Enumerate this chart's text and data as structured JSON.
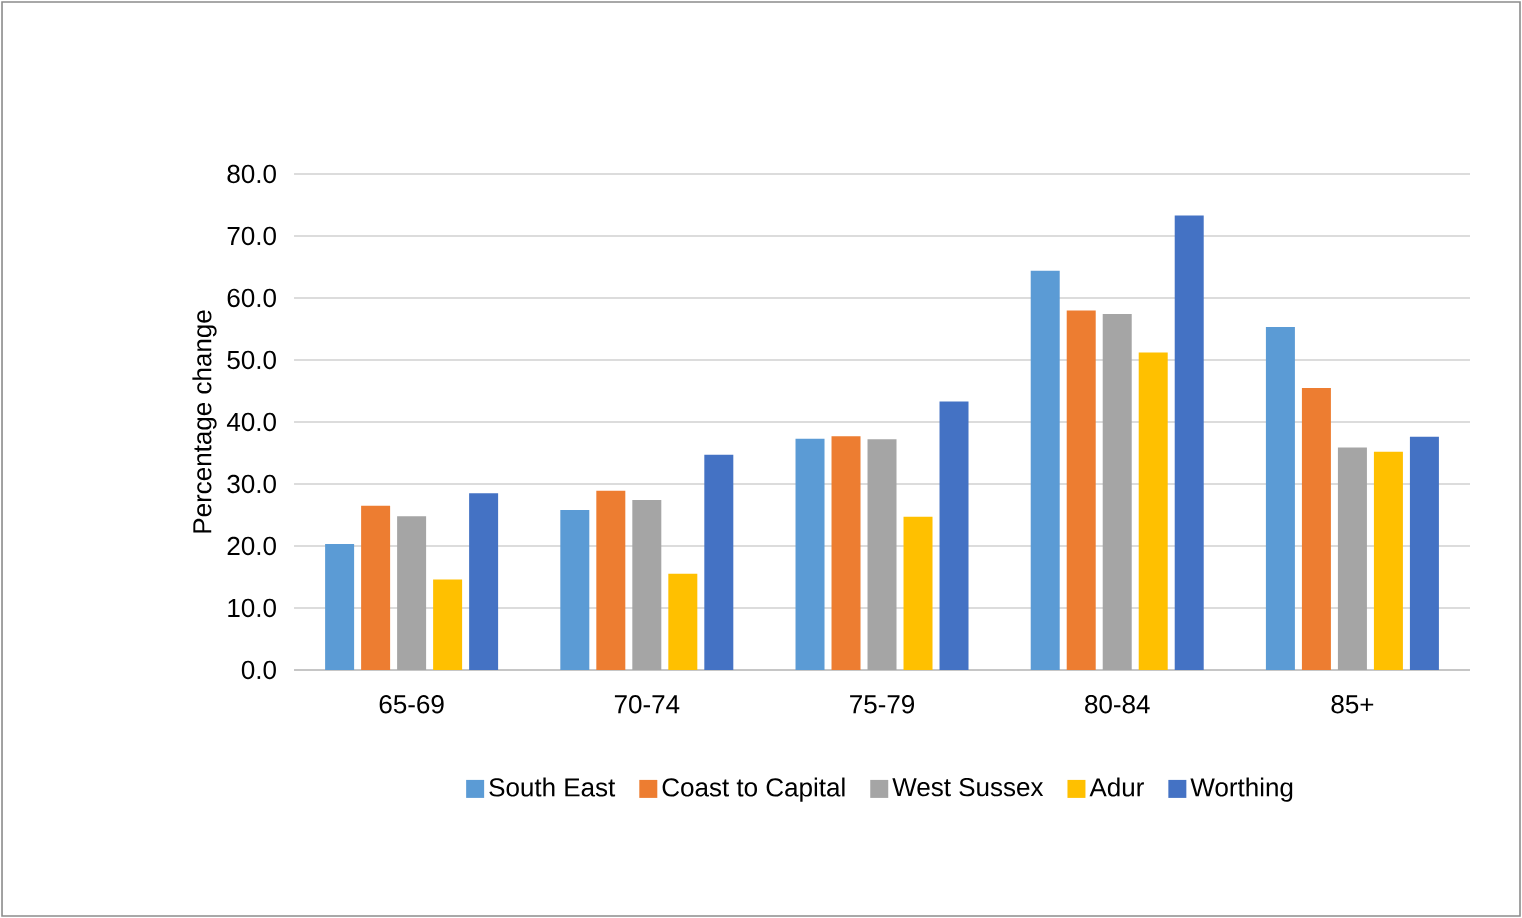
{
  "chart_data": {
    "type": "bar",
    "ylabel": "Percentage change",
    "categories": [
      "65-69",
      "70-74",
      "75-79",
      "80-84",
      "85+"
    ],
    "series": [
      {
        "name": "South East",
        "color": "#5b9bd5",
        "values": [
          20.3,
          25.8,
          37.3,
          64.4,
          55.3
        ]
      },
      {
        "name": "Coast to Capital",
        "color": "#ed7d31",
        "values": [
          26.5,
          28.9,
          37.7,
          58.0,
          45.5
        ]
      },
      {
        "name": "West Sussex",
        "color": "#a5a5a5",
        "values": [
          24.8,
          27.4,
          37.2,
          57.4,
          35.9
        ]
      },
      {
        "name": "Adur",
        "color": "#ffc000",
        "values": [
          14.6,
          15.5,
          24.7,
          51.2,
          35.2
        ]
      },
      {
        "name": "Worthing",
        "color": "#4472c4",
        "values": [
          28.5,
          34.7,
          43.3,
          73.3,
          37.6
        ]
      }
    ],
    "ylim": [
      0,
      80
    ],
    "yticks": [
      {
        "value": 0,
        "label": "0.0"
      },
      {
        "value": 10,
        "label": "10.0"
      },
      {
        "value": 20,
        "label": "20.0"
      },
      {
        "value": 30,
        "label": "30.0"
      },
      {
        "value": 40,
        "label": "40.0"
      },
      {
        "value": 50,
        "label": "50.0"
      },
      {
        "value": 60,
        "label": "60.0"
      },
      {
        "value": 70,
        "label": "70.0"
      },
      {
        "value": 80,
        "label": "80.0"
      }
    ],
    "grid": "y",
    "legend": "bottom"
  }
}
